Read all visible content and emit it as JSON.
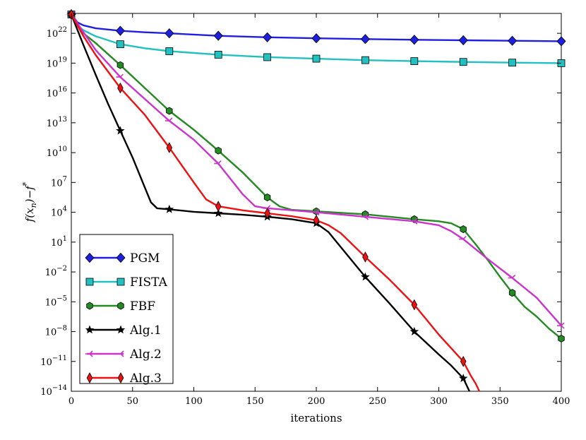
{
  "chart_data": {
    "type": "line",
    "title": "",
    "xlabel": "iterations",
    "ylabel": "f(x_n)−f*",
    "ylabel_parts": {
      "f": "f(x",
      "sub": "n",
      "mid": ")−f",
      "sup": "*"
    },
    "xlim": [
      0,
      400
    ],
    "ylim_log10": [
      -14,
      24
    ],
    "yscale": "log",
    "grid": false,
    "legend_placement": "lower-left",
    "x_ticks": [
      0,
      50,
      100,
      150,
      200,
      250,
      300,
      350,
      400
    ],
    "x_tick_labels": [
      "0",
      "50",
      "100",
      "150",
      "200",
      "250",
      "300",
      "350",
      "400"
    ],
    "y_tick_exponents": [
      -14,
      -11,
      -8,
      -5,
      -2,
      1,
      4,
      7,
      10,
      13,
      16,
      19,
      22
    ],
    "y_tick_labels": [
      "10",
      "10",
      "10",
      "10",
      "10",
      "10",
      "10",
      "10",
      "10",
      "10",
      "10",
      "10",
      "10"
    ],
    "y_tick_sups": [
      "−14",
      "−11",
      "−8",
      "−5",
      "−2",
      "1",
      "4",
      "7",
      "10",
      "13",
      "16",
      "19",
      "22"
    ],
    "series": [
      {
        "name": "PGM",
        "color": "#1f1fe0",
        "marker": "diamond",
        "marker_x": [
          0,
          40,
          80,
          120,
          160,
          200,
          240,
          280,
          320,
          360,
          400
        ],
        "x": [
          0,
          5,
          10,
          20,
          40,
          60,
          80,
          120,
          160,
          200,
          240,
          280,
          320,
          360,
          400
        ],
        "log10y": [
          23.9,
          23.1,
          22.8,
          22.5,
          22.25,
          22.1,
          22.0,
          21.75,
          21.6,
          21.5,
          21.42,
          21.35,
          21.3,
          21.25,
          21.2
        ]
      },
      {
        "name": "FISTA",
        "color": "#22c0c0",
        "marker": "square",
        "marker_x": [
          0,
          40,
          80,
          120,
          160,
          200,
          240,
          280,
          320,
          360,
          400
        ],
        "x": [
          0,
          5,
          10,
          20,
          40,
          60,
          80,
          120,
          160,
          200,
          240,
          280,
          320,
          360,
          400
        ],
        "log10y": [
          23.9,
          22.8,
          22.3,
          21.7,
          20.9,
          20.5,
          20.2,
          19.85,
          19.6,
          19.45,
          19.3,
          19.2,
          19.12,
          19.05,
          19.0
        ]
      },
      {
        "name": "FBF",
        "color": "#228b22",
        "marker": "hexagon",
        "marker_x": [
          0,
          40,
          80,
          120,
          160,
          200,
          240,
          280,
          320,
          360,
          400
        ],
        "x": [
          0,
          10,
          20,
          40,
          60,
          80,
          100,
          120,
          140,
          160,
          170,
          180,
          200,
          240,
          280,
          300,
          310,
          320,
          330,
          340,
          350,
          360,
          370,
          380,
          390,
          400
        ],
        "log10y": [
          23.9,
          22.0,
          21.0,
          18.8,
          16.5,
          14.2,
          12.3,
          10.2,
          8.0,
          5.5,
          4.6,
          4.25,
          4.1,
          3.8,
          3.3,
          3.1,
          2.9,
          2.3,
          0.8,
          -0.8,
          -2.5,
          -4.1,
          -5.5,
          -6.5,
          -7.7,
          -8.7
        ]
      },
      {
        "name": "Alg.1",
        "color": "#000000",
        "marker": "star",
        "marker_x": [
          0,
          40,
          80,
          120,
          160,
          200,
          240,
          280,
          320
        ],
        "x": [
          0,
          10,
          20,
          30,
          40,
          50,
          60,
          65,
          70,
          80,
          100,
          120,
          140,
          160,
          180,
          200,
          210,
          220,
          240,
          260,
          280,
          300,
          310,
          320,
          325
        ],
        "log10y": [
          23.9,
          20.8,
          17.8,
          14.9,
          12.2,
          9.5,
          6.5,
          5.0,
          4.4,
          4.3,
          4.05,
          3.9,
          3.75,
          3.55,
          3.3,
          2.9,
          2.0,
          0.5,
          -2.5,
          -5.2,
          -8.0,
          -10.3,
          -11.4,
          -12.7,
          -14.0
        ]
      },
      {
        "name": "Alg.2",
        "color": "#cc33cc",
        "marker": "tri",
        "marker_x": [
          0,
          40,
          80,
          120,
          160,
          200,
          240,
          280,
          320,
          360,
          400
        ],
        "x": [
          0,
          20,
          40,
          60,
          80,
          100,
          120,
          140,
          150,
          160,
          200,
          240,
          280,
          300,
          310,
          320,
          340,
          360,
          380,
          400
        ],
        "log10y": [
          23.9,
          20.3,
          17.6,
          15.4,
          13.2,
          11.3,
          8.9,
          5.8,
          4.6,
          4.4,
          4.0,
          3.55,
          3.1,
          2.7,
          2.1,
          1.3,
          -0.7,
          -2.6,
          -4.6,
          -7.4
        ]
      },
      {
        "name": "Alg.3",
        "color": "#ee1111",
        "marker": "thin-diamond",
        "marker_x": [
          0,
          40,
          80,
          120,
          160,
          200,
          240,
          280,
          320
        ],
        "x": [
          0,
          10,
          20,
          40,
          60,
          80,
          100,
          110,
          120,
          140,
          160,
          180,
          200,
          210,
          220,
          240,
          260,
          280,
          300,
          320,
          326,
          330,
          332,
          333
        ],
        "log10y": [
          23.9,
          21.7,
          19.8,
          16.5,
          13.8,
          10.5,
          7.0,
          5.3,
          4.6,
          4.2,
          3.9,
          3.6,
          3.2,
          2.7,
          1.9,
          -0.5,
          -2.8,
          -5.3,
          -8.3,
          -11.0,
          -12.4,
          -13.2,
          -13.7,
          -14.0
        ]
      }
    ]
  }
}
